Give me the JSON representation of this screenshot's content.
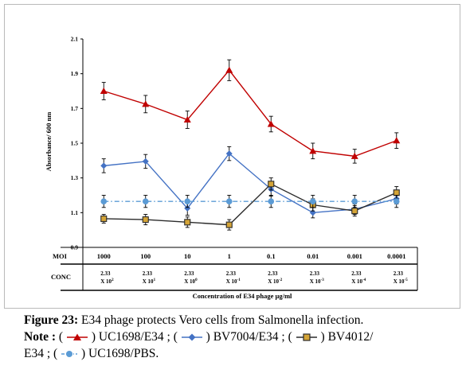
{
  "chart_data": {
    "type": "line",
    "ylabel": "Absorbance/ 600 nm",
    "xlabel": "Concentration of E34 phage µg/ml",
    "ylim": [
      0.9,
      2.1
    ],
    "yticks": [
      "0.9",
      "1.1",
      "1.3",
      "1.5",
      "1.7",
      "1.9",
      "2.1"
    ],
    "grid": false,
    "rows": {
      "moi_label": "MOI",
      "moi": [
        "1000",
        "100",
        "10",
        "1",
        "0.1",
        "0.01",
        "0.001",
        "0.0001"
      ],
      "conc_label": "CONC",
      "conc_value": "2.33",
      "conc_base": "X 10",
      "conc_exp": [
        "2",
        "1",
        "0",
        "-1",
        "-2",
        "-3",
        "-4",
        "-5"
      ]
    },
    "series": [
      {
        "name": "UC1698/E34",
        "color": "#c00000",
        "marker": "triangle",
        "line": "solid",
        "values": [
          1.8,
          1.725,
          1.635,
          1.92,
          1.61,
          1.455,
          1.425,
          1.515
        ],
        "errors": [
          0.05,
          0.05,
          0.05,
          0.06,
          0.045,
          0.045,
          0.04,
          0.045
        ]
      },
      {
        "name": "BV7004/E34",
        "color": "#4472c4",
        "marker": "diamond",
        "line": "solid",
        "values": [
          1.37,
          1.395,
          1.125,
          1.44,
          1.235,
          1.1,
          1.12,
          1.18
        ],
        "errors": [
          0.04,
          0.04,
          0.04,
          0.04,
          0.04,
          0.03,
          0.03,
          0.03
        ]
      },
      {
        "name": "BV4012/E34",
        "color": "#2b2b2b",
        "marker": "square",
        "line": "solid",
        "marker_fill": "#d4a437",
        "values": [
          1.065,
          1.06,
          1.045,
          1.03,
          1.265,
          1.145,
          1.11,
          1.215
        ],
        "errors": [
          0.025,
          0.03,
          0.03,
          0.03,
          0.035,
          0.035,
          0.03,
          0.035
        ]
      },
      {
        "name": "UC1698/PBS",
        "color": "#5b9bd5",
        "marker": "circle",
        "line": "dashdot",
        "values": [
          1.165,
          1.165,
          1.165,
          1.165,
          1.165,
          1.165,
          1.165,
          1.165
        ],
        "errors": [
          0.035,
          0.035,
          0.035,
          0.035,
          0.035,
          0.035,
          0.035,
          0.035
        ]
      }
    ]
  },
  "caption": {
    "figure_label": "Figure 23:",
    "figure_text": " E34 phage protects Vero cells from Salmonella infection.",
    "note_label": "Note :",
    "open": "(",
    "close": ")",
    "s1": "UC1698/E34 ;",
    "s2": "BV7004/E34 ;",
    "s3": "BV4012/",
    "s3b": "E34 ;",
    "s4": "UC1698/PBS."
  }
}
